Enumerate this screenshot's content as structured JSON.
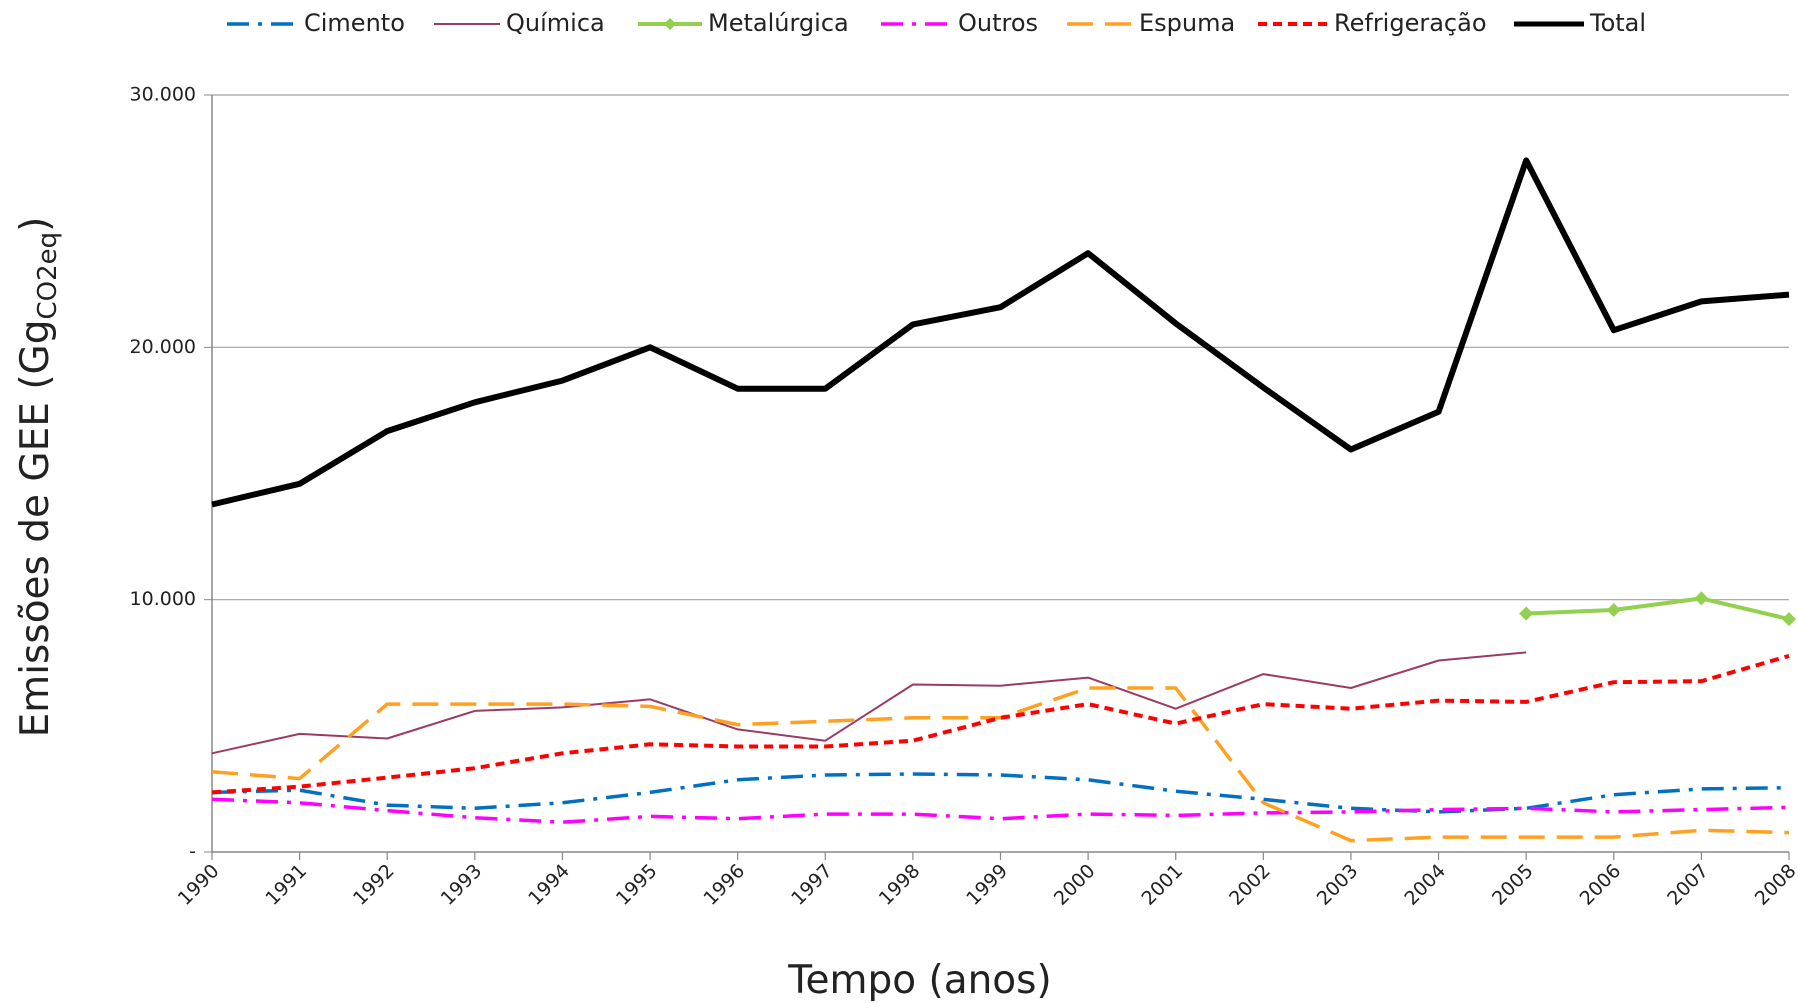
{
  "chart_data": {
    "type": "line",
    "xlabel": "Tempo (anos)",
    "ylabel": "Emissões  de GEE (Gg",
    "ylabel_sub": "CO2eq",
    "ylabel_end": ")",
    "categories": [
      "1990",
      "1991",
      "1992",
      "1993",
      "1994",
      "1995",
      "1996",
      "1997",
      "1998",
      "1999",
      "2000",
      "2001",
      "2002",
      "2003",
      "2004",
      "2005",
      "2006",
      "2007",
      "2008"
    ],
    "ylim": [
      0,
      30000
    ],
    "yticks": [
      {
        "value": 0,
        "label": "-"
      },
      {
        "value": 10000,
        "label": "10.000"
      },
      {
        "value": 20000,
        "label": "20.000"
      },
      {
        "value": 30000,
        "label": "30.000"
      }
    ],
    "grid": true,
    "legend": "top",
    "series": [
      {
        "name": "Cimento",
        "color": "#0070c0",
        "dash": "dashdot",
        "width": 3.5,
        "values": [
          2360,
          2450,
          1860,
          1730,
          1950,
          2360,
          2860,
          3050,
          3090,
          3050,
          2860,
          2410,
          2090,
          1730,
          1590,
          1730,
          2270,
          2500,
          2550
        ]
      },
      {
        "name": "Química",
        "color": "#9b3b64",
        "dash": "solid",
        "width": 2,
        "values": [
          3910,
          4680,
          4500,
          5590,
          5730,
          6050,
          4860,
          4410,
          6640,
          6590,
          6910,
          5680,
          7050,
          6500,
          7590,
          7910,
          null,
          null,
          null
        ]
      },
      {
        "name": "Metalúrgica",
        "color": "#92d050",
        "dash": "solid",
        "width": 4,
        "marker": "diamond",
        "values": [
          null,
          null,
          null,
          null,
          null,
          null,
          null,
          null,
          null,
          null,
          null,
          null,
          null,
          null,
          null,
          9450,
          9590,
          10050,
          9230
        ]
      },
      {
        "name": "Outros",
        "color": "#ff00ff",
        "dash": "dashdot",
        "width": 3.5,
        "values": [
          2090,
          1950,
          1640,
          1360,
          1180,
          1410,
          1320,
          1500,
          1500,
          1320,
          1500,
          1450,
          1550,
          1590,
          1680,
          1730,
          1590,
          1680,
          1770
        ]
      },
      {
        "name": "Espuma",
        "color": "#ffa020",
        "dash": "longdash",
        "width": 3.5,
        "values": [
          3180,
          2910,
          5860,
          5860,
          5860,
          5770,
          5050,
          5180,
          5320,
          5320,
          6500,
          6500,
          1950,
          450,
          590,
          590,
          590,
          860,
          770
        ]
      },
      {
        "name": "Refrigeração",
        "color": "#ff0000",
        "dash": "dash",
        "width": 4,
        "values": [
          2360,
          2590,
          2950,
          3320,
          3910,
          4270,
          4180,
          4180,
          4410,
          5320,
          5860,
          5090,
          5860,
          5680,
          6000,
          5950,
          6730,
          6770,
          7770
        ]
      },
      {
        "name": "Total",
        "color": "#000000",
        "dash": "solid",
        "width": 6,
        "values": [
          13770,
          14590,
          16680,
          17820,
          18680,
          20000,
          18360,
          18360,
          20910,
          21590,
          23730,
          20950,
          18410,
          15950,
          17450,
          27410,
          20680,
          21820,
          22090
        ]
      }
    ]
  }
}
